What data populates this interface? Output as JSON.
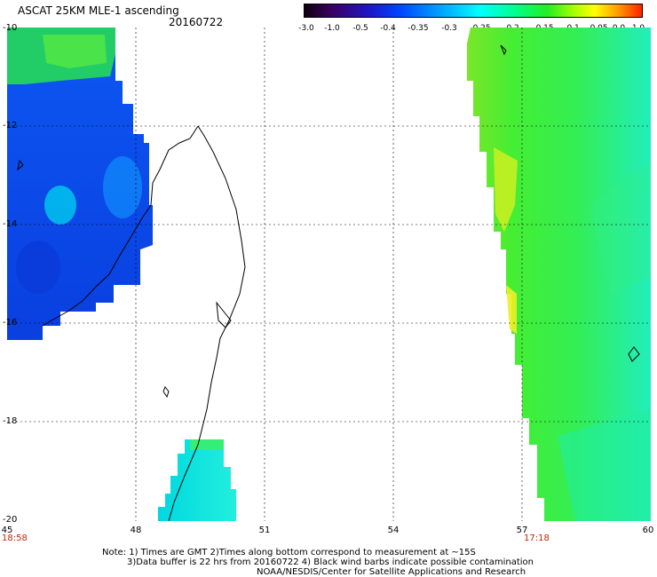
{
  "header": {
    "title": "ASCAT 25KM MLE-1 ascending",
    "date": "20160722"
  },
  "colorbar": {
    "labels": [
      "-3.0",
      "-1.0",
      "-0.5",
      "-0.4",
      "-0.35",
      "-0.3",
      "-0.25",
      "-0.2",
      "-0.15",
      "-0.1",
      "-0.05",
      "0.0",
      "1.0"
    ]
  },
  "map": {
    "lat_labels": [
      "-10",
      "-12",
      "-14",
      "-16",
      "-18",
      "-20"
    ],
    "lon_labels": [
      "45",
      "48",
      "51",
      "54",
      "57",
      "60"
    ],
    "lon_range": [
      45,
      60
    ],
    "lat_range": [
      -20,
      -10
    ],
    "swath_time_left": "18:58",
    "swath_time_right": "17:18",
    "grid": true,
    "colors": {
      "blue": "#0a55f0",
      "cyan": "#00e6e6",
      "green": "#33ee33",
      "yellow": "#ccff22",
      "coast": "#000000",
      "time_label": "#cc2200"
    }
  },
  "footer": {
    "line1": "Note: 1) Times are GMT 2)Times along bottom correspond to measurement at ~15S",
    "line2": "3)Data buffer is 22 hrs from 20160722 4) Black wind barbs indicate possible contamination",
    "line3": "NOAA/NESDIS/Center for Satellite Applications and Research"
  }
}
